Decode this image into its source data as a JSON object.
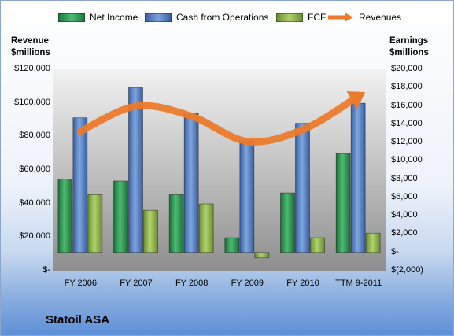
{
  "chart_data": {
    "type": "bar",
    "categories": [
      "FY 2006",
      "FY 2007",
      "FY 2008",
      "FY 2009",
      "FY 2010",
      "TTM 9-2011"
    ],
    "series": [
      {
        "name": "Net Income",
        "axis": "right",
        "color": "#2e9a55",
        "values": [
          8000,
          7800,
          6300,
          1600,
          6500,
          10800
        ]
      },
      {
        "name": "Cash from Operations",
        "axis": "right",
        "color": "#4f7cc4",
        "values": [
          14700,
          18000,
          15200,
          12200,
          14100,
          16300
        ]
      },
      {
        "name": "FCF",
        "axis": "right",
        "color": "#8fb24d",
        "values": [
          6300,
          4600,
          5300,
          -600,
          1600,
          2100
        ]
      },
      {
        "name": "Revenues",
        "axis": "left",
        "type": "line",
        "color": "#ec7a2a",
        "values": [
          83000,
          98000,
          92000,
          77000,
          84000,
          104000
        ]
      }
    ],
    "left_axis": {
      "label_line1": "Revenue",
      "label_line2": "$millions",
      "ylim": [
        0,
        120000
      ],
      "ticks": [
        "$-",
        "$20,000",
        "$40,000",
        "$60,000",
        "$80,000",
        "$100,000",
        "$120,000"
      ]
    },
    "right_axis": {
      "label_line1": "Earnings",
      "label_line2": "$millions",
      "ylim": [
        -2000,
        20000
      ],
      "ticks": [
        "$(2,000)",
        "$-",
        "$2,000",
        "$4,000",
        "$6,000",
        "$8,000",
        "$10,000",
        "$12,000",
        "$14,000",
        "$16,000",
        "$18,000",
        "$20,000"
      ]
    },
    "legend_position": "top",
    "grid": false
  },
  "company": "Statoil ASA"
}
